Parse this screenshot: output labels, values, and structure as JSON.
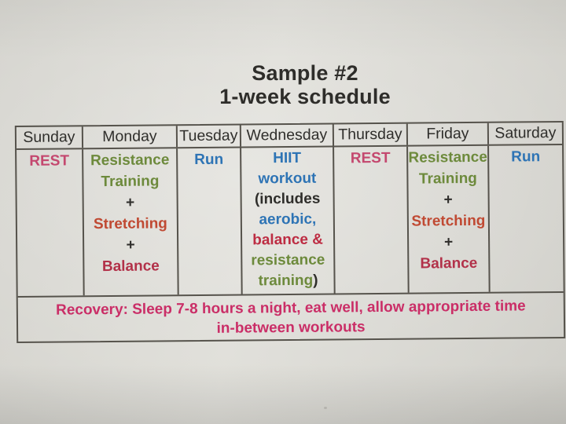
{
  "title": {
    "line1": "Sample #2",
    "line2": "1-week schedule"
  },
  "colors": {
    "black": "#2f2e2b",
    "rest_pink": "#c4486f",
    "recovery_pink": "#ca2e67",
    "green": "#6d8a3c",
    "orange_red": "#c04a33",
    "crimson": "#b23149",
    "red": "#bd2c42",
    "blue": "#2e74b5"
  },
  "table": {
    "columns": [
      {
        "day": "Sunday",
        "lines": [
          [
            {
              "t": "REST",
              "c": "rest_pink"
            }
          ]
        ]
      },
      {
        "day": "Monday",
        "lines": [
          [
            {
              "t": "Resistance",
              "c": "green"
            }
          ],
          [
            {
              "t": "Training",
              "c": "green"
            }
          ],
          [
            {
              "t": "+",
              "c": "black"
            }
          ],
          [
            {
              "t": "Stretching",
              "c": "orange_red"
            }
          ],
          [
            {
              "t": "+",
              "c": "black"
            }
          ],
          [
            {
              "t": "Balance",
              "c": "crimson"
            }
          ]
        ]
      },
      {
        "day": "Tuesday",
        "lines": [
          [
            {
              "t": "Run",
              "c": "blue"
            }
          ]
        ]
      },
      {
        "day": "Wednesday",
        "lines": [
          [
            {
              "t": "HIIT",
              "c": "blue"
            }
          ],
          [
            {
              "t": "workout",
              "c": "blue"
            }
          ],
          [
            {
              "t": "(includes",
              "c": "black"
            }
          ],
          [
            {
              "t": "aerobic,",
              "c": "blue"
            }
          ],
          [
            {
              "t": "balance &",
              "c": "red"
            }
          ],
          [
            {
              "t": "resistance",
              "c": "green"
            }
          ],
          [
            {
              "t": "training",
              "c": "green"
            },
            {
              "t": ")",
              "c": "black"
            }
          ]
        ]
      },
      {
        "day": "Thursday",
        "lines": [
          [
            {
              "t": "REST",
              "c": "rest_pink"
            }
          ]
        ]
      },
      {
        "day": "Friday",
        "lines": [
          [
            {
              "t": "Resistance",
              "c": "green"
            }
          ],
          [
            {
              "t": "Training",
              "c": "green"
            }
          ],
          [
            {
              "t": "+",
              "c": "black"
            }
          ],
          [
            {
              "t": "Stretching",
              "c": "orange_red"
            }
          ],
          [
            {
              "t": "+",
              "c": "black"
            }
          ],
          [
            {
              "t": "Balance",
              "c": "crimson"
            }
          ]
        ]
      },
      {
        "day": "Saturday",
        "lines": [
          [
            {
              "t": "Run",
              "c": "blue"
            }
          ]
        ]
      }
    ],
    "recovery": {
      "line1": "Recovery: Sleep 7-8 hours a night, eat well, allow appropriate time",
      "line2": "in-between workouts",
      "color": "recovery_pink"
    }
  }
}
